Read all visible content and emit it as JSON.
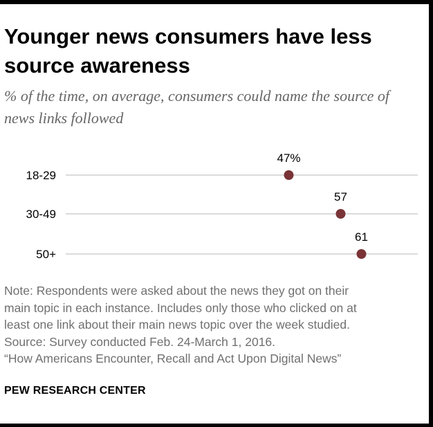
{
  "chart_data": {
    "type": "scatter",
    "title": "Younger news consumers have less source awareness",
    "subtitle": "% of the time, on average, consumers could name the source of news links followed",
    "categories": [
      "18-29",
      "30-49",
      "50+"
    ],
    "values": [
      47,
      57,
      61
    ],
    "value_labels": [
      "47%",
      "57",
      "61"
    ],
    "x_range": [
      0,
      70
    ],
    "point_color": "#7a3336",
    "line_color": "#cfcfcf"
  },
  "notes": [
    "Note: Respondents were asked about the news they got on their",
    "main topic in each instance. Includes only those who clicked on at",
    "least one link about their main news topic over the week studied.",
    "Source: Survey conducted Feb. 24-March 1, 2016.",
    "“How Americans Encounter, Recall and Act Upon Digital News”"
  ],
  "brand": "PEW RESEARCH CENTER"
}
